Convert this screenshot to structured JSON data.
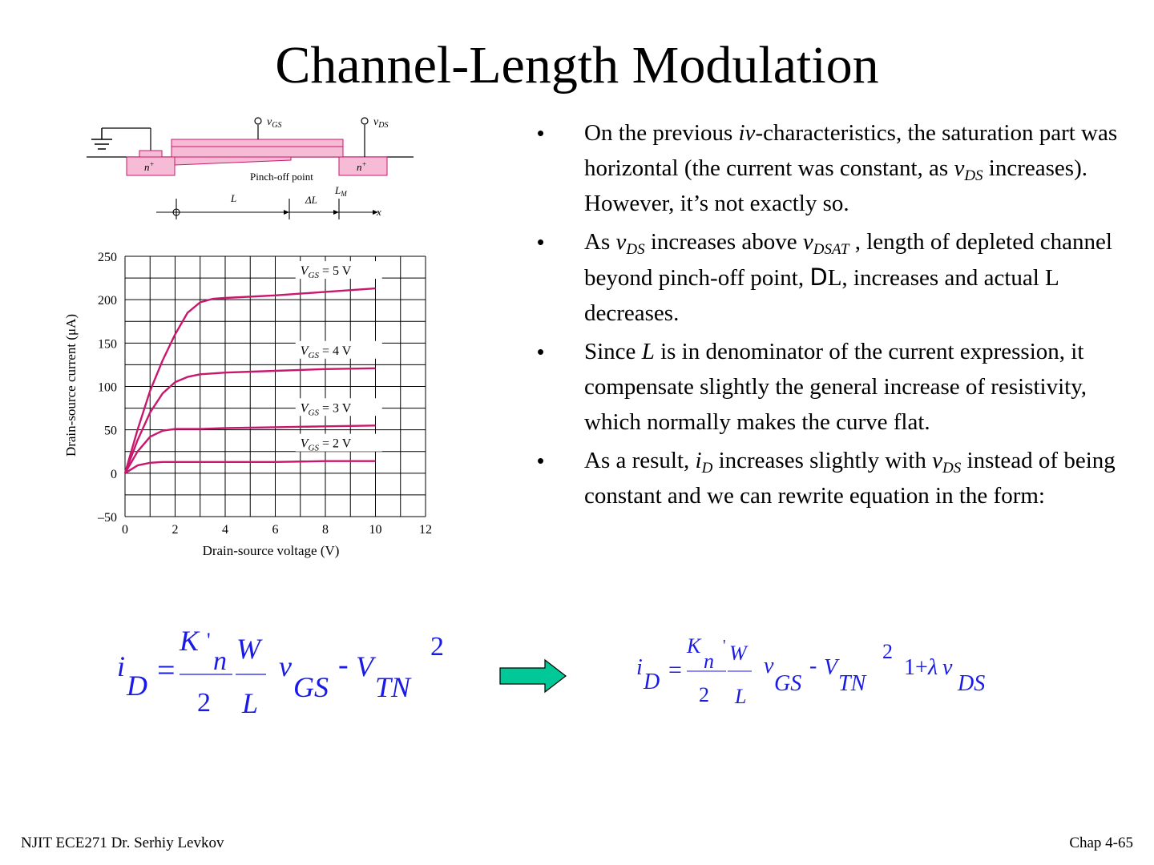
{
  "slide": {
    "title": "Channel-Length Modulation"
  },
  "bullets": {
    "b1": {
      "t1": "On the previous ",
      "t2": "iv",
      "t3": "-characteristics, the saturation part was horizontal (the current was constant, as ",
      "v": "v",
      "sub": "DS",
      "t4": " increases). However, it’s not exactly so."
    },
    "b2": {
      "t1": "As ",
      "v1": "v",
      "sub1": "DS",
      "t2": " increases above ",
      "v2": "v",
      "sub2": "DSAT",
      "t3": " , length of depleted channel beyond pinch-off point, ",
      "delta": "D",
      "t4": "L, increases and actual L decreases."
    },
    "b3": {
      "t1": "Since ",
      "L": "L",
      "t2": " is in denominator of the current expression, it compensate slightly the general increase of resistivity, which normally makes the curve flat."
    },
    "b4": {
      "t1": "As a result, ",
      "i": "i",
      "subD": "D",
      "t2": " increases slightly with ",
      "v": "v",
      "subDS": "DS",
      "t3": " instead of being constant and we can rewrite equation in the form:"
    },
    "bullet_char": "•"
  },
  "device_diagram": {
    "vgs": "v",
    "vgs_sub": "GS",
    "vds": "v",
    "vds_sub": "DS",
    "n_left": "n",
    "n_right": "n",
    "plus": "+",
    "pinch_off": "Pinch-off point",
    "L": "L",
    "deltaL": "ΔL",
    "LM": "L",
    "LM_sub": "M",
    "x": "x"
  },
  "chart_data": {
    "type": "line",
    "xlabel": "Drain-source voltage (V)",
    "ylabel": "Drain-source current (μA)",
    "xlim": [
      0,
      12
    ],
    "ylim": [
      -50,
      250
    ],
    "xticks": [
      "0",
      "2",
      "4",
      "6",
      "8",
      "10",
      "12"
    ],
    "yticks": [
      "250",
      "200",
      "150",
      "100",
      "50",
      "0",
      "–50"
    ],
    "grid": true,
    "series": [
      {
        "name": "V",
        "label_sub": "GS",
        "label_rest": " = 5 V",
        "x": [
          0,
          0.5,
          1,
          1.5,
          2,
          2.5,
          3,
          3.5,
          4,
          6,
          8,
          10
        ],
        "y": [
          0,
          50,
          95,
          130,
          160,
          185,
          197,
          201,
          202,
          205,
          209,
          213
        ]
      },
      {
        "name": "V",
        "label_sub": "GS",
        "label_rest": " = 4 V",
        "x": [
          0,
          0.5,
          1,
          1.5,
          2,
          2.5,
          3,
          4,
          6,
          8,
          10
        ],
        "y": [
          0,
          38,
          70,
          92,
          105,
          111,
          114,
          116,
          118,
          120,
          121
        ]
      },
      {
        "name": "V",
        "label_sub": "GS",
        "label_rest": " = 3 V",
        "x": [
          0,
          0.5,
          1,
          1.5,
          2,
          3,
          4,
          6,
          8,
          10
        ],
        "y": [
          0,
          25,
          42,
          49,
          51,
          51,
          52,
          53,
          54,
          55
        ]
      },
      {
        "name": "V",
        "label_sub": "GS",
        "label_rest": " = 2 V",
        "x": [
          0,
          0.5,
          1,
          1.5,
          2,
          4,
          6,
          8,
          10
        ],
        "y": [
          0,
          9,
          12,
          13,
          13,
          13,
          13,
          14,
          14
        ]
      }
    ],
    "color": "#c8186e"
  },
  "equations": {
    "eq1": {
      "i": "i",
      "D": "D",
      "eq": "=",
      "K": "K",
      "prime": "'",
      "n": "n",
      "two": "2",
      "W": "W",
      "L": "L",
      "v": "v",
      "GS": "GS",
      "minus": "-",
      "V": "V",
      "TN": "TN",
      "sq": "2",
      "paren_glyph": ""
    },
    "eq2": {
      "i": "i",
      "D": "D",
      "eq": "=",
      "K": "K",
      "prime": "'",
      "n": "n",
      "two": "2",
      "W": "W",
      "L": "L",
      "v": "v",
      "GS": "GS",
      "minus": "-",
      "V": "V",
      "TN": "TN",
      "sq": "2",
      "one_plus": "1+",
      "lambda": "λ",
      "v2": "v",
      "DS": "DS",
      "paren_glyph": ""
    },
    "color": "#1a1ae6",
    "arrow_color": "#00c896"
  },
  "footer": {
    "left": "NJIT  ECE271 Dr. Serhiy Levkov",
    "right": "Chap 4-65"
  }
}
